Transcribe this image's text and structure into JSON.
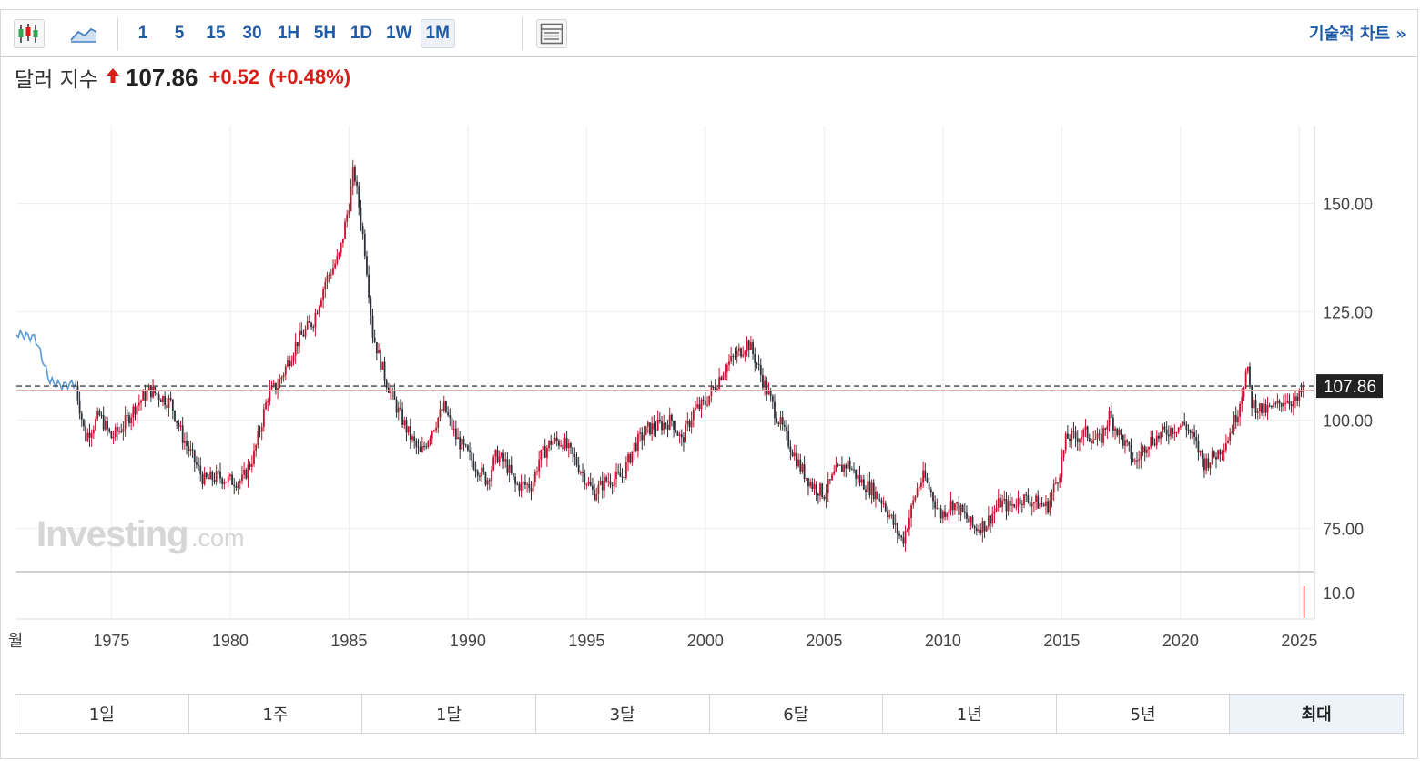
{
  "toolbar": {
    "chart_type_icons": [
      "candlestick-icon",
      "area-chart-icon"
    ],
    "intervals": [
      {
        "label": "1",
        "active": false
      },
      {
        "label": "5",
        "active": false
      },
      {
        "label": "15",
        "active": false
      },
      {
        "label": "30",
        "active": false
      },
      {
        "label": "1H",
        "active": false
      },
      {
        "label": "5H",
        "active": false
      },
      {
        "label": "1D",
        "active": false
      },
      {
        "label": "1W",
        "active": false
      },
      {
        "label": "1M",
        "active": true
      }
    ],
    "layout_icon": "layout-icon",
    "technical_chart_label": "기술적 차트 »"
  },
  "quote": {
    "name": "달러 지수",
    "direction": "up",
    "price": "107.86",
    "change": "+0.52",
    "change_pct": "(+0.48%)",
    "up_color": "#d91e18"
  },
  "watermark": {
    "brand": "Investing",
    "suffix": ".com"
  },
  "chart_data": {
    "type": "candlestick",
    "interval": "1M",
    "x_tick_labels": [
      "월",
      "1975",
      "1980",
      "1985",
      "1990",
      "1995",
      "2000",
      "2005",
      "2010",
      "2015",
      "2020",
      "2025"
    ],
    "x_ticks": [
      1971,
      1975,
      1980,
      1985,
      1990,
      1995,
      2000,
      2005,
      2010,
      2015,
      2020,
      2025
    ],
    "x_range": [
      1971.0,
      2025.6
    ],
    "y_tick_labels": [
      "150.00",
      "125.00",
      "100.00",
      "75.00"
    ],
    "y_ticks": [
      150,
      125,
      100,
      75
    ],
    "y_range": [
      65,
      168
    ],
    "last_price_label": "107.86",
    "last_price": 107.86,
    "reference_line": 106.9,
    "early_period_line": {
      "x": [
        1971.0,
        1971.8,
        1972.4,
        1972.9,
        1973.5
      ],
      "y": [
        120.0,
        119.0,
        109.0,
        108.0,
        108.5
      ]
    },
    "monthly_close_anchors": {
      "x": [
        1973.5,
        1973.9,
        1974.5,
        1975.0,
        1975.4,
        1976.0,
        1976.6,
        1977.5,
        1978.0,
        1978.9,
        1979.5,
        1980.0,
        1980.5,
        1981.0,
        1981.6,
        1982.0,
        1982.8,
        1983.5,
        1984.0,
        1984.6,
        1985.0,
        1985.2,
        1985.7,
        1986.0,
        1986.5,
        1987.0,
        1987.5,
        1988.0,
        1988.5,
        1989.0,
        1989.5,
        1990.0,
        1990.8,
        1991.2,
        1991.6,
        1992.0,
        1992.7,
        1993.0,
        1993.5,
        1994.0,
        1994.6,
        1995.3,
        1995.8,
        1996.5,
        1997.0,
        1997.6,
        1998.2,
        1998.6,
        1999.0,
        1999.5,
        2000.0,
        2000.5,
        2000.8,
        2001.3,
        2001.8,
        2002.1,
        2002.5,
        2003.0,
        2003.5,
        2004.0,
        2004.5,
        2005.0,
        2005.5,
        2006.0,
        2006.5,
        2007.0,
        2007.5,
        2008.0,
        2008.3,
        2008.9,
        2009.2,
        2009.9,
        2010.4,
        2010.9,
        2011.3,
        2011.8,
        2012.4,
        2012.8,
        2013.3,
        2013.9,
        2014.4,
        2014.9,
        2015.2,
        2015.6,
        2016.0,
        2016.6,
        2017.0,
        2017.6,
        2018.1,
        2018.6,
        2019.0,
        2019.6,
        2020.2,
        2020.6,
        2021.0,
        2021.5,
        2022.0,
        2022.4,
        2022.8,
        2023.0,
        2023.5,
        2024.0,
        2024.4,
        2024.9,
        2025.2
      ],
      "y": [
        108.0,
        96.0,
        101.0,
        96.0,
        98.0,
        103.0,
        107.0,
        104.0,
        96.0,
        86.0,
        87.0,
        86.0,
        86.0,
        92.0,
        106.0,
        108.0,
        118.0,
        123.0,
        132.0,
        138.0,
        150.0,
        158.0,
        138.0,
        120.0,
        110.0,
        103.0,
        97.0,
        92.0,
        98.0,
        103.0,
        96.0,
        92.0,
        86.0,
        92.0,
        90.0,
        85.0,
        85.0,
        91.0,
        95.0,
        95.0,
        90.0,
        83.0,
        86.0,
        87.0,
        94.0,
        98.0,
        99.0,
        100.0,
        95.0,
        102.0,
        104.0,
        109.0,
        112.0,
        115.0,
        118.0,
        114.0,
        108.0,
        101.0,
        95.0,
        89.0,
        85.0,
        83.0,
        88.0,
        90.0,
        86.0,
        84.0,
        81.0,
        75.0,
        72.0,
        84.0,
        87.0,
        78.0,
        81.0,
        78.0,
        75.0,
        76.0,
        81.0,
        80.0,
        82.0,
        81.0,
        80.0,
        88.0,
        96.0,
        96.0,
        97.0,
        95.0,
        101.0,
        95.0,
        90.0,
        95.0,
        96.0,
        98.0,
        99.0,
        95.0,
        90.0,
        92.0,
        96.0,
        102.0,
        112.0,
        104.0,
        102.0,
        103.0,
        105.0,
        104.0,
        107.86
      ]
    },
    "volume_pane": {
      "y_tick_labels": [
        "10.0"
      ],
      "y_ticks": [
        10.0
      ],
      "last_bar_color": "#d91e18"
    },
    "colors": {
      "up": "#c8102e",
      "down": "#2b2f36",
      "early_line": "#5b9bd5",
      "last_price_tag": "#222222",
      "grid": "#eeeeee"
    }
  },
  "periods": [
    {
      "label": "1일",
      "active": false
    },
    {
      "label": "1주",
      "active": false
    },
    {
      "label": "1달",
      "active": false
    },
    {
      "label": "3달",
      "active": false
    },
    {
      "label": "6달",
      "active": false
    },
    {
      "label": "1년",
      "active": false
    },
    {
      "label": "5년",
      "active": false
    },
    {
      "label": "최대",
      "active": true
    }
  ]
}
